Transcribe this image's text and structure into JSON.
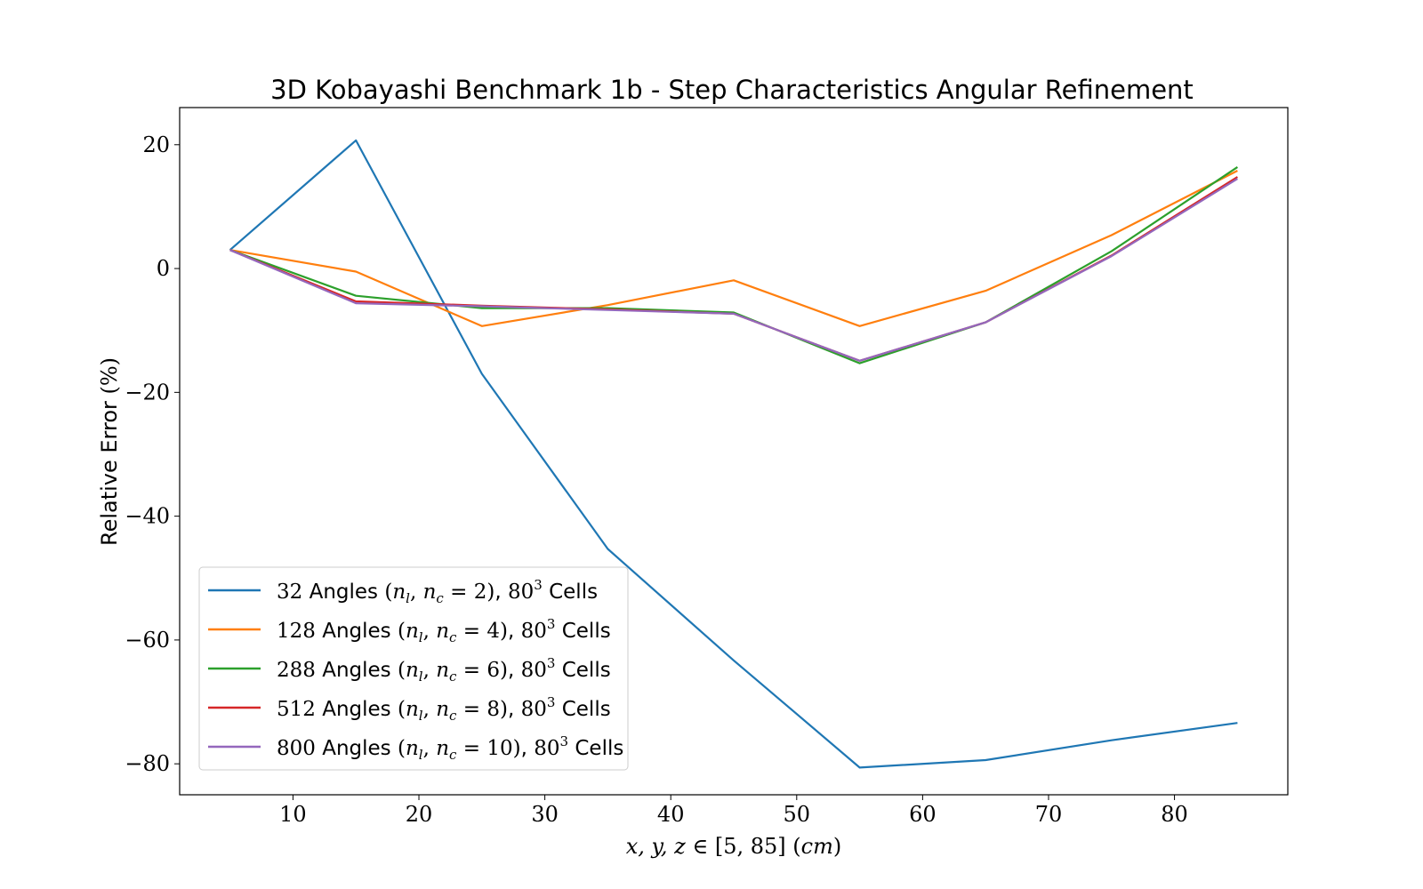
{
  "chart_data": {
    "type": "line",
    "title": "3D Kobayashi Benchmark 1b - Step Characteristics Angular Refinement",
    "xlabel": "x, y, z ∈ [5, 85] (cm)",
    "ylabel": "Relative Error (%)",
    "xlim": [
      1,
      89
    ],
    "ylim": [
      -85,
      26
    ],
    "xticks": [
      10,
      20,
      30,
      40,
      50,
      60,
      70,
      80
    ],
    "yticks": [
      20,
      0,
      -20,
      -40,
      -60,
      -80
    ],
    "ytick_labels": [
      "20",
      "0",
      "−20",
      "−40",
      "−60",
      "−80"
    ],
    "grid": false,
    "legend_position": "lower-left",
    "x": [
      5,
      15,
      25,
      35,
      45,
      55,
      65,
      75,
      85
    ],
    "series": [
      {
        "name": "32 Angles (n_l, n_c = 2), 80^3 Cells",
        "color": "#1f77b4",
        "values": [
          3.0,
          20.7,
          -17.0,
          -45.3,
          -63.3,
          -80.6,
          -79.4,
          -76.2,
          -73.4
        ]
      },
      {
        "name": "128 Angles (n_l, n_c = 4), 80^3 Cells",
        "color": "#ff7f0e",
        "values": [
          3.0,
          -0.5,
          -9.3,
          -5.9,
          -1.9,
          -9.3,
          -3.6,
          5.4,
          15.8
        ]
      },
      {
        "name": "288 Angles (n_l, n_c = 6), 80^3 Cells",
        "color": "#2ca02c",
        "values": [
          3.0,
          -4.4,
          -6.4,
          -6.4,
          -7.1,
          -15.3,
          -8.7,
          2.8,
          16.4
        ]
      },
      {
        "name": "512 Angles (n_l, n_c = 8), 80^3 Cells",
        "color": "#d62728",
        "values": [
          3.0,
          -5.3,
          -6.0,
          -6.6,
          -7.3,
          -14.9,
          -8.7,
          2.1,
          14.8
        ]
      },
      {
        "name": "800 Angles (n_l, n_c = 10), 80^3 Cells",
        "color": "#9467bd",
        "values": [
          3.0,
          -5.6,
          -6.1,
          -6.7,
          -7.3,
          -14.9,
          -8.7,
          2.0,
          14.5
        ]
      }
    ],
    "legend": [
      {
        "count": "32",
        "word": "Angles",
        "n": "2",
        "cells_base": "80",
        "cells_exp": "3",
        "cells_word": "Cells"
      },
      {
        "count": "128",
        "word": "Angles",
        "n": "4",
        "cells_base": "80",
        "cells_exp": "3",
        "cells_word": "Cells"
      },
      {
        "count": "288",
        "word": "Angles",
        "n": "6",
        "cells_base": "80",
        "cells_exp": "3",
        "cells_word": "Cells"
      },
      {
        "count": "512",
        "word": "Angles",
        "n": "8",
        "cells_base": "80",
        "cells_exp": "3",
        "cells_word": "Cells"
      },
      {
        "count": "800",
        "word": "Angles",
        "n": "10",
        "cells_base": "80",
        "cells_exp": "3",
        "cells_word": "Cells"
      }
    ],
    "xlabel_parts": {
      "vars": "x, y, z",
      "in": "∈",
      "range": "[5, 85]",
      "unit": "cm"
    },
    "ylabel_parts": {
      "text": "Relative Error",
      "unit": "(%)"
    }
  }
}
